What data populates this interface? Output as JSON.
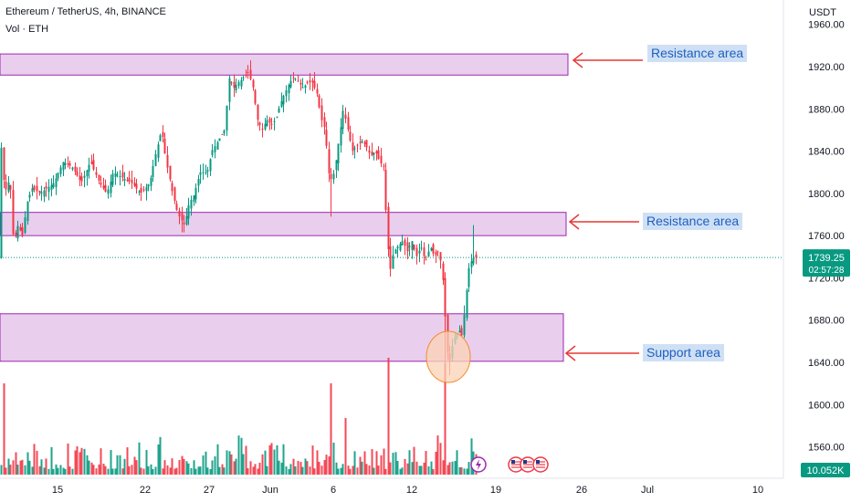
{
  "legend": {
    "title": "Ethereum / TetherUS, 4h, BINANCE",
    "volume": "Vol · ETH"
  },
  "currency_label": "USDT",
  "price_badge": {
    "price": "1739.25",
    "countdown": "02:57:28",
    "color": "#089981"
  },
  "volume_badge": {
    "value": "10.052K",
    "color": "#089981"
  },
  "colors": {
    "up": "#089981",
    "down": "#f23645",
    "zone_fill": "#e1bee7",
    "zone_border": "#9c27b0",
    "arrow": "#e53935",
    "note_text": "#1e5fbf",
    "note_bg": "#cfe0f5"
  },
  "annotations": [
    {
      "label": "Resistance area",
      "zone_price_range": [
        1912,
        1932
      ]
    },
    {
      "label": "Resistance area",
      "zone_price_range": [
        1760,
        1782
      ]
    },
    {
      "label": "Support area",
      "zone_price_range": [
        1641,
        1686
      ]
    }
  ],
  "event_icons": [
    "lightning-icon",
    "us-flag-icon",
    "us-flag-icon",
    "us-flag-icon"
  ],
  "chart_data": {
    "type": "candlestick",
    "title": "Ethereum / TetherUS, 4h, BINANCE",
    "y_axis": {
      "unit": "USDT",
      "ticks": [
        "1960.00",
        "1920.00",
        "1880.00",
        "1840.00",
        "1800.00",
        "1760.00",
        "1720.00",
        "1680.00",
        "1640.00",
        "1600.00",
        "1560.00"
      ],
      "range": [
        1535,
        1980
      ]
    },
    "x_axis": {
      "ticks": [
        "15",
        "22",
        "27",
        "Jun",
        "6",
        "12",
        "19",
        "26",
        "Jul",
        "10"
      ]
    },
    "last_price": 1739.25,
    "series_path": [
      [
        0,
        1870
      ],
      [
        6,
        1800
      ],
      [
        12,
        1815
      ],
      [
        16,
        1750
      ],
      [
        20,
        1770
      ],
      [
        26,
        1760
      ],
      [
        30,
        1790
      ],
      [
        36,
        1805
      ],
      [
        45,
        1800
      ],
      [
        60,
        1810
      ],
      [
        70,
        1830
      ],
      [
        80,
        1825
      ],
      [
        90,
        1810
      ],
      [
        100,
        1830
      ],
      [
        110,
        1810
      ],
      [
        118,
        1800
      ],
      [
        125,
        1820
      ],
      [
        135,
        1815
      ],
      [
        145,
        1810
      ],
      [
        155,
        1800
      ],
      [
        165,
        1810
      ],
      [
        172,
        1840
      ],
      [
        178,
        1860
      ],
      [
        183,
        1830
      ],
      [
        190,
        1800
      ],
      [
        196,
        1780
      ],
      [
        203,
        1770
      ],
      [
        208,
        1790
      ],
      [
        214,
        1800
      ],
      [
        220,
        1820
      ],
      [
        228,
        1820
      ],
      [
        233,
        1840
      ],
      [
        240,
        1850
      ],
      [
        247,
        1860
      ],
      [
        252,
        1910
      ],
      [
        257,
        1900
      ],
      [
        262,
        1905
      ],
      [
        268,
        1910
      ],
      [
        273,
        1915
      ],
      [
        278,
        1900
      ],
      [
        283,
        1870
      ],
      [
        288,
        1860
      ],
      [
        293,
        1870
      ],
      [
        298,
        1865
      ],
      [
        303,
        1870
      ],
      [
        308,
        1885
      ],
      [
        313,
        1895
      ],
      [
        318,
        1905
      ],
      [
        323,
        1910
      ],
      [
        328,
        1905
      ],
      [
        333,
        1900
      ],
      [
        338,
        1905
      ],
      [
        343,
        1905
      ],
      [
        348,
        1895
      ],
      [
        353,
        1870
      ],
      [
        357,
        1860
      ],
      [
        362,
        1810
      ],
      [
        367,
        1820
      ],
      [
        372,
        1850
      ],
      [
        377,
        1880
      ],
      [
        382,
        1860
      ],
      [
        387,
        1840
      ],
      [
        392,
        1845
      ],
      [
        397,
        1850
      ],
      [
        402,
        1845
      ],
      [
        407,
        1835
      ],
      [
        412,
        1840
      ],
      [
        417,
        1830
      ],
      [
        421,
        1825
      ],
      [
        425,
        1760
      ],
      [
        428,
        1725
      ],
      [
        432,
        1745
      ],
      [
        437,
        1750
      ],
      [
        442,
        1755
      ],
      [
        447,
        1745
      ],
      [
        452,
        1755
      ],
      [
        457,
        1740
      ],
      [
        462,
        1750
      ],
      [
        467,
        1735
      ],
      [
        472,
        1750
      ],
      [
        477,
        1740
      ],
      [
        481,
        1745
      ],
      [
        485,
        1730
      ],
      [
        488,
        1690
      ],
      [
        491,
        1650
      ],
      [
        494,
        1640
      ],
      [
        497,
        1660
      ],
      [
        500,
        1665
      ],
      [
        504,
        1670
      ],
      [
        507,
        1665
      ],
      [
        511,
        1700
      ],
      [
        514,
        1728
      ],
      [
        518,
        1738
      ],
      [
        522,
        1739.25
      ]
    ],
    "spikes": [
      {
        "x": 424,
        "price": 1770
      },
      {
        "x": 487,
        "price": 1620
      },
      {
        "x": 492,
        "price": 1628
      },
      {
        "x": 518,
        "price": 1770
      },
      {
        "x": 362,
        "price": 1778
      },
      {
        "x": 200,
        "price": 1763
      }
    ]
  }
}
